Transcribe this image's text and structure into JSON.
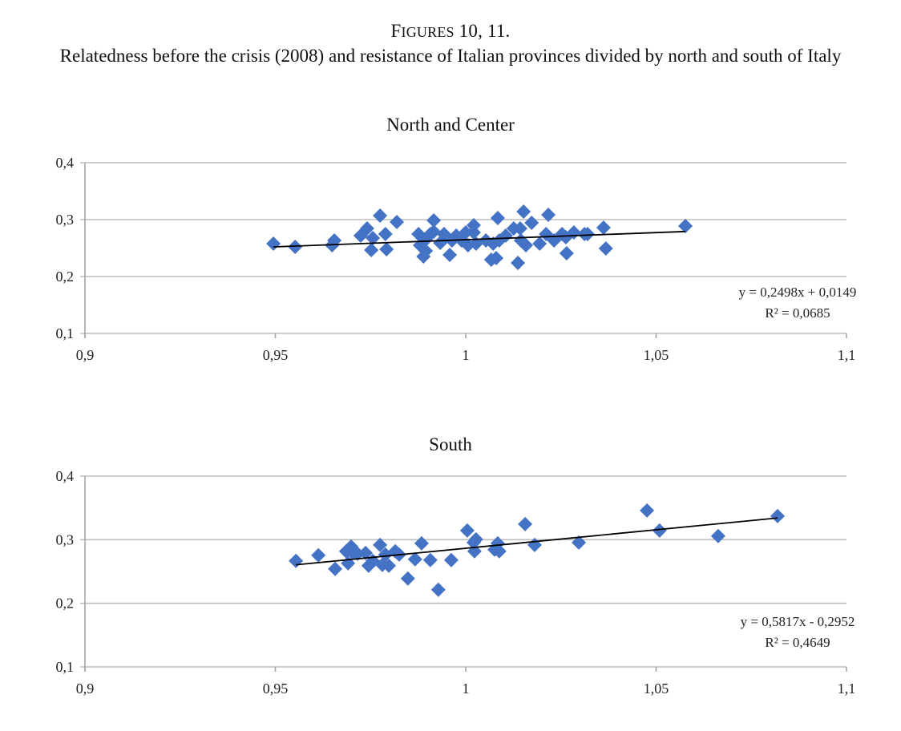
{
  "figure": {
    "label_prefix": "F",
    "label_smallcaps": "IGURES",
    "label_rest": " 10, 11.",
    "title": "Relatedness before the crisis (2008) and resistance of Italian provinces divided by north and south of Italy"
  },
  "colors": {
    "marker": "#4472C4",
    "trendline": "#000000",
    "grid": "#bdbdbd",
    "axis": "#a6a6a6"
  },
  "chart_data": [
    {
      "type": "scatter",
      "title": "North and Center",
      "xlabel": "",
      "ylabel": "",
      "xlim": [
        0.9,
        1.1
      ],
      "ylim": [
        0.1,
        0.4
      ],
      "xticks": [
        0.9,
        0.95,
        1.0,
        1.05,
        1.1
      ],
      "xtick_labels": [
        "0,9",
        "0,95",
        "1",
        "1,05",
        "1,1"
      ],
      "yticks": [
        0.1,
        0.2,
        0.3,
        0.4
      ],
      "ytick_labels": [
        "0,1",
        "0,2",
        "0,3",
        "0,4"
      ],
      "grid": true,
      "marker": "diamond",
      "trendline": {
        "slope": 0.2498,
        "intercept": 0.0149,
        "x_range": [
          0.9495,
          1.0577
        ],
        "equation": "y = 0,2498x + 0,0149",
        "r2": "R² = 0,0685"
      },
      "points": [
        [
          0.9495,
          0.2577
        ],
        [
          0.9552,
          0.2521
        ],
        [
          0.9649,
          0.2549
        ],
        [
          0.9655,
          0.2634
        ],
        [
          0.9724,
          0.2718
        ],
        [
          0.9741,
          0.2845
        ],
        [
          0.9756,
          0.2676
        ],
        [
          0.9752,
          0.2465
        ],
        [
          0.9789,
          0.2746
        ],
        [
          0.9792,
          0.2479
        ],
        [
          0.9876,
          0.2746
        ],
        [
          0.988,
          0.2549
        ],
        [
          0.9889,
          0.2352
        ],
        [
          0.9895,
          0.2451
        ],
        [
          0.9916,
          0.2986
        ],
        [
          0.9907,
          0.2746
        ],
        [
          0.9895,
          0.2648
        ],
        [
          0.9933,
          0.2592
        ],
        [
          0.9943,
          0.2746
        ],
        [
          0.9958,
          0.238
        ],
        [
          0.9964,
          0.2634
        ],
        [
          0.9975,
          0.2718
        ],
        [
          0.9989,
          0.2634
        ],
        [
          1.0,
          0.2775
        ],
        [
          1.0006,
          0.2549
        ],
        [
          1.0021,
          0.2775
        ],
        [
          1.0027,
          0.2577
        ],
        [
          1.0053,
          0.2634
        ],
        [
          1.0067,
          0.2296
        ],
        [
          1.0072,
          0.2577
        ],
        [
          1.0084,
          0.3028
        ],
        [
          1.0088,
          0.2634
        ],
        [
          1.008,
          0.2324
        ],
        [
          1.0105,
          0.2718
        ],
        [
          1.0126,
          0.2845
        ],
        [
          1.0137,
          0.2239
        ],
        [
          1.0143,
          0.2845
        ],
        [
          1.0152,
          0.3141
        ],
        [
          1.0158,
          0.2549
        ],
        [
          1.0173,
          0.2944
        ],
        [
          1.0194,
          0.2577
        ],
        [
          1.0217,
          0.3085
        ],
        [
          1.0211,
          0.2746
        ],
        [
          1.0232,
          0.2634
        ],
        [
          1.0253,
          0.2746
        ],
        [
          1.0263,
          0.269
        ],
        [
          1.0265,
          0.2408
        ],
        [
          1.0284,
          0.2775
        ],
        [
          1.0312,
          0.2746
        ],
        [
          1.032,
          0.2746
        ],
        [
          1.0362,
          0.2859
        ],
        [
          1.0368,
          0.2493
        ],
        [
          1.0577,
          0.2887
        ],
        [
          1.0021,
          0.2901
        ],
        [
          0.9916,
          0.2789
        ],
        [
          0.9819,
          0.2958
        ],
        [
          0.9775,
          0.307
        ],
        [
          1.0145,
          0.2634
        ]
      ]
    },
    {
      "type": "scatter",
      "title": "South",
      "xlabel": "",
      "ylabel": "",
      "xlim": [
        0.9,
        1.1
      ],
      "ylim": [
        0.1,
        0.4
      ],
      "xticks": [
        0.9,
        0.95,
        1.0,
        1.05,
        1.1
      ],
      "xtick_labels": [
        "0,9",
        "0,95",
        "1",
        "1,05",
        "1,1"
      ],
      "yticks": [
        0.1,
        0.2,
        0.3,
        0.4
      ],
      "ytick_labels": [
        "0,1",
        "0,2",
        "0,3",
        "0,4"
      ],
      "grid": true,
      "marker": "diamond",
      "trendline": {
        "slope": 0.5817,
        "intercept": -0.2952,
        "x_range": [
          0.9554,
          1.0819
        ],
        "equation": "y = 0,5817x - 0,2952",
        "r2": "R² = 0,4649"
      },
      "points": [
        [
          0.9554,
          0.2667
        ],
        [
          0.9613,
          0.2755
        ],
        [
          0.9657,
          0.2541
        ],
        [
          0.9686,
          0.2818
        ],
        [
          0.9691,
          0.2629
        ],
        [
          0.9699,
          0.2893
        ],
        [
          0.9703,
          0.2792
        ],
        [
          0.9716,
          0.278
        ],
        [
          0.9737,
          0.2792
        ],
        [
          0.9745,
          0.2591
        ],
        [
          0.9756,
          0.2667
        ],
        [
          0.9775,
          0.2918
        ],
        [
          0.9781,
          0.2604
        ],
        [
          0.9789,
          0.2767
        ],
        [
          0.9798,
          0.2591
        ],
        [
          0.9815,
          0.2818
        ],
        [
          0.9825,
          0.2767
        ],
        [
          0.9848,
          0.239
        ],
        [
          0.9867,
          0.2692
        ],
        [
          0.9884,
          0.2943
        ],
        [
          0.9907,
          0.2679
        ],
        [
          0.9928,
          0.2214
        ],
        [
          0.9962,
          0.2679
        ],
        [
          1.0004,
          0.3145
        ],
        [
          1.0021,
          0.2956
        ],
        [
          1.0023,
          0.2818
        ],
        [
          1.0027,
          0.3006
        ],
        [
          1.0076,
          0.2843
        ],
        [
          1.0084,
          0.2943
        ],
        [
          1.0088,
          0.2818
        ],
        [
          1.0156,
          0.3245
        ],
        [
          1.0181,
          0.2918
        ],
        [
          1.0297,
          0.2956
        ],
        [
          1.0476,
          0.3459
        ],
        [
          1.0509,
          0.3145
        ],
        [
          1.0663,
          0.3057
        ],
        [
          1.0819,
          0.3371
        ]
      ]
    }
  ]
}
